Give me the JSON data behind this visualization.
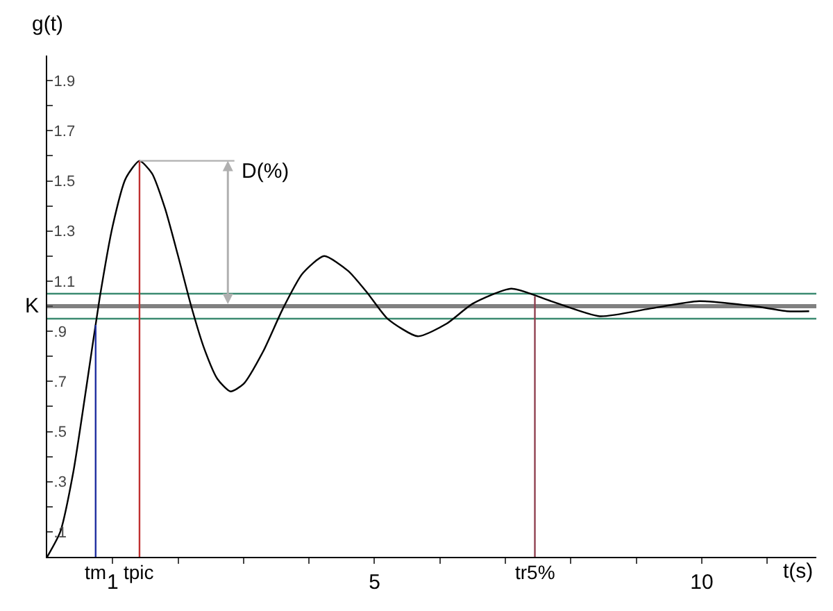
{
  "chart_data": {
    "type": "line",
    "xlabel": "t(s)",
    "ylabel": "g(t)",
    "x": [
      0,
      0.2,
      0.4,
      0.6,
      0.8,
      1.0,
      1.2,
      1.41,
      1.6,
      1.8,
      2.0,
      2.2,
      2.4,
      2.6,
      2.8,
      3.0,
      3.3,
      3.6,
      3.9,
      4.23,
      4.6,
      4.9,
      5.2,
      5.66,
      6.1,
      6.5,
      7.09,
      7.7,
      8.44,
      9.2,
      9.96,
      10.8,
      11.3,
      11.64
    ],
    "series": [
      {
        "color": "#000000",
        "values": [
          0,
          0.1,
          0.34,
          0.68,
          1.03,
          1.32,
          1.51,
          1.58,
          1.53,
          1.39,
          1.2,
          1.0,
          0.83,
          0.71,
          0.66,
          0.69,
          0.82,
          0.99,
          1.13,
          1.2,
          1.14,
          1.05,
          0.95,
          0.88,
          0.93,
          1.01,
          1.07,
          1.02,
          0.96,
          0.99,
          1.02,
          1.0,
          0.98,
          0.98
        ]
      }
    ],
    "xlim": [
      0,
      11.75
    ],
    "ylim": [
      0,
      2
    ],
    "xticks": [
      {
        "value": 1,
        "label": "1"
      },
      {
        "value": 2,
        "label": null
      },
      {
        "value": 3,
        "label": null
      },
      {
        "value": 4,
        "label": null
      },
      {
        "value": 5,
        "label": "5"
      },
      {
        "value": 6,
        "label": null
      },
      {
        "value": 7,
        "label": null
      },
      {
        "value": 8,
        "label": null
      },
      {
        "value": 9,
        "label": null
      },
      {
        "value": 10,
        "label": "10"
      },
      {
        "value": 11,
        "label": null
      }
    ],
    "yticks": [
      {
        "value": 0.1,
        "label": ".1"
      },
      {
        "value": 0.2,
        "label": null
      },
      {
        "value": 0.3,
        "label": ".3"
      },
      {
        "value": 0.4,
        "label": null
      },
      {
        "value": 0.5,
        "label": ".5"
      },
      {
        "value": 0.6,
        "label": null
      },
      {
        "value": 0.7,
        "label": ".7"
      },
      {
        "value": 0.8,
        "label": null
      },
      {
        "value": 0.9,
        "label": ".9"
      },
      {
        "value": 1.0,
        "label": null
      },
      {
        "value": 1.1,
        "label": "1.1"
      },
      {
        "value": 1.2,
        "label": null
      },
      {
        "value": 1.3,
        "label": "1.3"
      },
      {
        "value": 1.4,
        "label": null
      },
      {
        "value": 1.5,
        "label": "1.5"
      },
      {
        "value": 1.6,
        "label": null
      },
      {
        "value": 1.7,
        "label": "1.7"
      },
      {
        "value": 1.8,
        "label": null
      },
      {
        "value": 1.9,
        "label": "1.9"
      }
    ],
    "ref_lines": [
      {
        "axis": "y",
        "value": 1,
        "label": "K",
        "color": "#808080"
      },
      {
        "axis": "y",
        "value": 1.05,
        "label": null,
        "color": "#3a8a70"
      },
      {
        "axis": "y",
        "value": 0.95,
        "label": null,
        "color": "#3a8a70"
      },
      {
        "axis": "x",
        "value": 0.74,
        "label": "tm",
        "color": "#1f2fa0"
      },
      {
        "axis": "x",
        "value": 1.41,
        "label": "tpic",
        "color": "#c03030"
      },
      {
        "axis": "x",
        "value": 7.45,
        "label": "tr5%",
        "color": "#904050"
      }
    ],
    "annotations": [
      {
        "text": "D(%)",
        "x": 1.41,
        "y": 1.58
      }
    ],
    "marker": "none",
    "line_style": "solid"
  }
}
